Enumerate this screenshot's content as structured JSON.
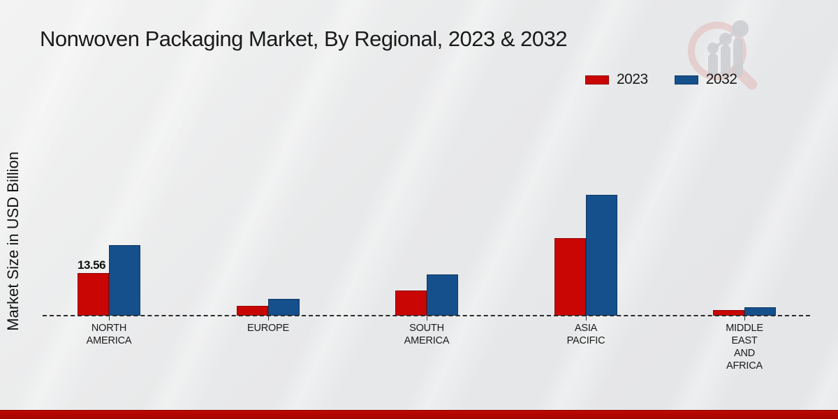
{
  "title": "Nonwoven Packaging Market, By Regional, 2023 & 2032",
  "ylabel": "Market Size in USD Billion",
  "legend": {
    "items": [
      {
        "label": "2023",
        "color": "#c90603"
      },
      {
        "label": "2032",
        "color": "#15508c"
      }
    ]
  },
  "watermark_icon": "magnifier-bar-chart-logo",
  "colors": {
    "series_2023": "#c90603",
    "series_2032": "#15508c",
    "bottom_strip": "#b00600",
    "background": "#e8e9ea",
    "text": "#1a1a1a"
  },
  "chart_data": {
    "type": "bar",
    "title": "Nonwoven Packaging Market, By Regional, 2023 & 2032",
    "ylabel": "Market Size in USD Billion",
    "xlabel": "",
    "categories": [
      "NORTH AMERICA",
      "EUROPE",
      "SOUTH AMERICA",
      "ASIA PACIFIC",
      "MIDDLE EAST AND AFRICA"
    ],
    "category_label_lines": [
      [
        "NORTH",
        "AMERICA"
      ],
      [
        "EUROPE"
      ],
      [
        "SOUTH",
        "AMERICA"
      ],
      [
        "ASIA",
        "PACIFIC"
      ],
      [
        "MIDDLE",
        "EAST",
        "AND",
        "AFRICA"
      ]
    ],
    "series": [
      {
        "name": "2023",
        "color": "#c90603",
        "values": [
          13.56,
          3.2,
          8.0,
          24.7,
          1.7
        ]
      },
      {
        "name": "2032",
        "color": "#15508c",
        "values": [
          22.4,
          5.3,
          13.2,
          38.4,
          2.7
        ]
      }
    ],
    "bar_labels": [
      {
        "series": "2023",
        "category": "NORTH AMERICA",
        "text": "13.56"
      }
    ],
    "y_axis_ticks_visible": false,
    "grid": false,
    "baseline_style": "dashed",
    "legend_position": "top-right"
  }
}
